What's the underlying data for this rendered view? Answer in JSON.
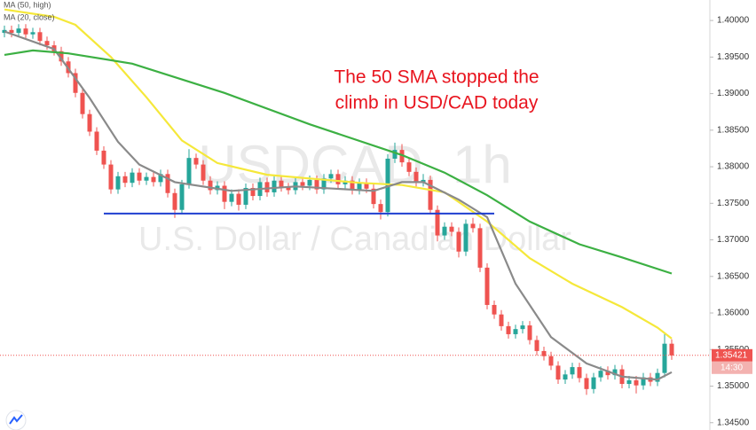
{
  "chart_data": {
    "type": "candlestick",
    "watermark": {
      "symbol": "USDCAD, 1h",
      "description": "U.S. Dollar / Canadian Dollar"
    },
    "annotation": [
      "The 50 SMA stopped the",
      "climb in USD/CAD today"
    ],
    "up_color": "#26a69a",
    "down_color": "#ef5350",
    "open": [
      1.3983,
      1.3987,
      1.3983,
      1.3989,
      1.3981,
      1.3984,
      1.3972,
      1.3966,
      1.3958,
      1.3944,
      1.3928,
      1.3901,
      1.3872,
      1.3848,
      1.3822,
      1.3803,
      1.3769,
      1.3787,
      1.3778,
      1.3792,
      1.3781,
      1.3786,
      1.3779,
      1.379,
      1.3764,
      1.3741,
      1.3776,
      1.3812,
      1.3803,
      1.3781,
      1.3768,
      1.3774,
      1.3752,
      1.3763,
      1.3748,
      1.3771,
      1.376,
      1.3779,
      1.3765,
      1.3781,
      1.3772,
      1.3768,
      1.3779,
      1.3774,
      1.3782,
      1.3769,
      1.3784,
      1.379,
      1.3776,
      1.3781,
      1.3768,
      1.3778,
      1.377,
      1.3749,
      1.3738,
      1.3811,
      1.3823,
      1.3806,
      1.3793,
      1.3779,
      1.3782,
      1.3741,
      1.3706,
      1.3718,
      1.3711,
      1.3684,
      1.3722,
      1.3716,
      1.3662,
      1.3611,
      1.3598,
      1.3582,
      1.3571,
      1.3578,
      1.3583,
      1.3563,
      1.3548,
      1.3541,
      1.3528,
      1.3509,
      1.3516,
      1.3526,
      1.3511,
      1.3496,
      1.3512,
      1.3521,
      1.3515,
      1.3523,
      1.3503,
      1.3508,
      1.3501,
      1.3512,
      1.3506,
      1.3518,
      1.3558
    ],
    "high": [
      1.3993,
      1.3993,
      1.3995,
      1.3995,
      1.399,
      1.399,
      1.3978,
      1.3972,
      1.3964,
      1.395,
      1.3934,
      1.3907,
      1.3878,
      1.3854,
      1.3828,
      1.3809,
      1.3793,
      1.3793,
      1.3798,
      1.3798,
      1.3792,
      1.3792,
      1.3796,
      1.3796,
      1.377,
      1.3782,
      1.3824,
      1.3818,
      1.3809,
      1.3787,
      1.378,
      1.378,
      1.3769,
      1.3769,
      1.3777,
      1.3777,
      1.3785,
      1.3785,
      1.3787,
      1.3787,
      1.3778,
      1.3785,
      1.3785,
      1.3788,
      1.3788,
      1.379,
      1.3796,
      1.3796,
      1.3787,
      1.3787,
      1.3784,
      1.3784,
      1.3776,
      1.3755,
      1.3817,
      1.3833,
      1.3831,
      1.3812,
      1.3799,
      1.379,
      1.3788,
      1.3747,
      1.3724,
      1.3724,
      1.3717,
      1.3728,
      1.373,
      1.3722,
      1.3668,
      1.3617,
      1.3604,
      1.3588,
      1.3584,
      1.3589,
      1.3589,
      1.3569,
      1.3554,
      1.3547,
      1.3534,
      1.3522,
      1.3532,
      1.3532,
      1.3517,
      1.3518,
      1.3527,
      1.3527,
      1.3529,
      1.3529,
      1.3514,
      1.3514,
      1.3518,
      1.3518,
      1.3524,
      1.3572,
      1.3564
    ],
    "low": [
      1.3977,
      1.3977,
      1.3977,
      1.3975,
      1.3975,
      1.3966,
      1.396,
      1.3952,
      1.3938,
      1.3922,
      1.3895,
      1.3866,
      1.3842,
      1.3816,
      1.3797,
      1.3763,
      1.3763,
      1.3772,
      1.3772,
      1.3775,
      1.3775,
      1.3773,
      1.3773,
      1.3758,
      1.373,
      1.3735,
      1.377,
      1.3797,
      1.3775,
      1.3762,
      1.3762,
      1.3742,
      1.3746,
      1.374,
      1.3742,
      1.3754,
      1.3754,
      1.3759,
      1.3759,
      1.3766,
      1.3762,
      1.3762,
      1.3768,
      1.3768,
      1.3763,
      1.3763,
      1.3778,
      1.377,
      1.377,
      1.3762,
      1.3762,
      1.3764,
      1.3743,
      1.3728,
      1.3732,
      1.3805,
      1.38,
      1.3787,
      1.3773,
      1.3773,
      1.3735,
      1.3698,
      1.37,
      1.3705,
      1.3676,
      1.3678,
      1.371,
      1.3656,
      1.3605,
      1.3592,
      1.3576,
      1.3565,
      1.3565,
      1.3572,
      1.3557,
      1.3542,
      1.3535,
      1.3522,
      1.3503,
      1.3503,
      1.351,
      1.3505,
      1.3488,
      1.349,
      1.3506,
      1.3509,
      1.3509,
      1.3497,
      1.3497,
      1.349,
      1.3495,
      1.35,
      1.35,
      1.3512,
      1.3536
    ],
    "close": [
      1.3987,
      1.3983,
      1.3989,
      1.3981,
      1.3984,
      1.3972,
      1.3966,
      1.3958,
      1.3944,
      1.3928,
      1.3901,
      1.3872,
      1.3848,
      1.3822,
      1.3803,
      1.3769,
      1.3787,
      1.3778,
      1.3792,
      1.3781,
      1.3786,
      1.3779,
      1.379,
      1.3764,
      1.3741,
      1.3776,
      1.3812,
      1.3803,
      1.3781,
      1.3768,
      1.3774,
      1.3752,
      1.3763,
      1.3748,
      1.3771,
      1.376,
      1.3779,
      1.3765,
      1.3781,
      1.3772,
      1.3768,
      1.3779,
      1.3774,
      1.3782,
      1.3769,
      1.3784,
      1.379,
      1.3776,
      1.3781,
      1.3768,
      1.3778,
      1.377,
      1.3749,
      1.3738,
      1.3811,
      1.3823,
      1.3806,
      1.3793,
      1.3779,
      1.3782,
      1.3741,
      1.3706,
      1.3718,
      1.3711,
      1.3684,
      1.3722,
      1.3716,
      1.3662,
      1.3611,
      1.3598,
      1.3582,
      1.3571,
      1.3578,
      1.3583,
      1.3563,
      1.3548,
      1.3541,
      1.3528,
      1.3509,
      1.3516,
      1.3526,
      1.3511,
      1.3496,
      1.3512,
      1.3521,
      1.3515,
      1.3523,
      1.3503,
      1.3508,
      1.3501,
      1.3512,
      1.3506,
      1.3518,
      1.3558,
      1.3542
    ],
    "lines": [
      {
        "name": "MA (50, high)",
        "color": "#f5e83a",
        "x": [
          0,
          7,
          10,
          15,
          20,
          25,
          30,
          37,
          50,
          56,
          62,
          68,
          74,
          80,
          87,
          92,
          94
        ],
        "values": [
          1.4015,
          1.4005,
          1.3994,
          1.395,
          1.3895,
          1.3836,
          1.3805,
          1.3789,
          1.3778,
          1.3775,
          1.3765,
          1.3725,
          1.3675,
          1.364,
          1.3608,
          1.358,
          1.3565
        ]
      },
      {
        "name": "MA (20, close)",
        "color": "#8a8a8a",
        "x": [
          0,
          7,
          12,
          16,
          19,
          24,
          32,
          41,
          52,
          56,
          59,
          64,
          68,
          72,
          77,
          82,
          87,
          92,
          94
        ],
        "values": [
          1.3985,
          1.3961,
          1.3894,
          1.3834,
          1.3803,
          1.3779,
          1.3767,
          1.3773,
          1.3767,
          1.3779,
          1.3779,
          1.3755,
          1.3731,
          1.364,
          1.3567,
          1.3531,
          1.3513,
          1.3509,
          1.3519
        ]
      },
      {
        "color": "#3cb043",
        "x": [
          0,
          4,
          9,
          18,
          31,
          43,
          56,
          62,
          68,
          74,
          81,
          87,
          94
        ],
        "values": [
          1.3953,
          1.3959,
          1.3955,
          1.3941,
          1.3901,
          1.3858,
          1.3816,
          1.3792,
          1.3761,
          1.3725,
          1.3694,
          1.3676,
          1.3654
        ]
      }
    ],
    "hline": {
      "value": 1.3736,
      "x": [
        14,
        69
      ],
      "color": "#1f3fd0"
    },
    "last_price": 1.35421,
    "last_time": "14:30",
    "xlim": [
      -0.625,
      99.375
    ],
    "ylim": [
      1.344,
      1.4028
    ],
    "yticks": [
      {
        "value": 1.4,
        "label": "1.40000"
      },
      {
        "value": 1.395,
        "label": "1.39500"
      },
      {
        "value": 1.39,
        "label": "1.39000"
      },
      {
        "value": 1.385,
        "label": "1.38500"
      },
      {
        "value": 1.38,
        "label": "1.38000"
      },
      {
        "value": 1.375,
        "label": "1.37500"
      },
      {
        "value": 1.37,
        "label": "1.37000"
      },
      {
        "value": 1.365,
        "label": "1.36500"
      },
      {
        "value": 1.36,
        "label": "1.36000"
      },
      {
        "value": 1.355,
        "label": "1.35500"
      },
      {
        "value": 1.35,
        "label": "1.35000"
      },
      {
        "value": 1.345,
        "label": "1.34500"
      }
    ],
    "grid": false
  }
}
